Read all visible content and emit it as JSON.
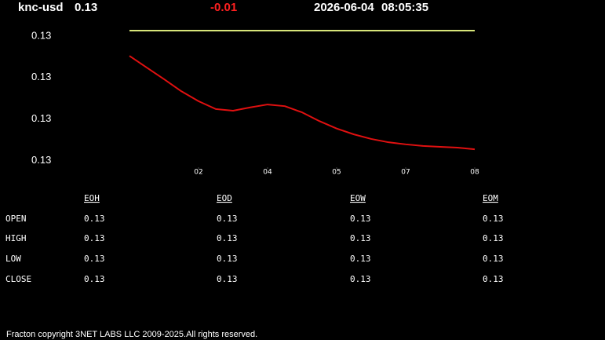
{
  "header": {
    "symbol": "knc-usd",
    "price": 0.13,
    "change": -0.01,
    "date": "2026-06-04",
    "time": "08:05:35"
  },
  "chart_data": {
    "type": "line",
    "x": [
      0,
      0.25,
      0.5,
      0.75,
      1,
      1.25,
      1.5,
      1.75,
      2,
      2.25,
      2.5,
      2.75,
      3,
      3.25,
      3.5,
      3.75,
      4,
      4.25,
      4.5,
      4.75,
      5
    ],
    "xlim": [
      0,
      5.5
    ],
    "xticks": [
      {
        "value": 1,
        "label": "02"
      },
      {
        "value": 2,
        "label": "04"
      },
      {
        "value": 3,
        "label": "05"
      },
      {
        "value": 4,
        "label": "07"
      },
      {
        "value": 5,
        "label": "08"
      }
    ],
    "ylim": [
      0.13008,
      0.13043
    ],
    "yticks": [
      {
        "value": 0.1304,
        "label": "0.13"
      },
      {
        "value": 0.1303,
        "label": "0.13"
      },
      {
        "value": 0.1302,
        "label": "0.13"
      },
      {
        "value": 0.1301,
        "label": "0.13"
      }
    ],
    "series": [
      {
        "color": "#d8e67a",
        "values": [
          0.130413,
          0.130413,
          0.130413,
          0.130413,
          0.130413,
          0.130413,
          0.130413,
          0.130413,
          0.130413,
          0.130413,
          0.130413,
          0.130413,
          0.130413,
          0.130413,
          0.130413,
          0.130413,
          0.130413,
          0.130413,
          0.130413,
          0.130413,
          0.130413
        ]
      },
      {
        "color": "#e01010",
        "values": [
          0.130352,
          0.130324,
          0.130296,
          0.130267,
          0.130243,
          0.130224,
          0.13022,
          0.130228,
          0.130235,
          0.130231,
          0.130216,
          0.130195,
          0.130177,
          0.130163,
          0.130152,
          0.130144,
          0.130139,
          0.130135,
          0.130133,
          0.130131,
          0.130127
        ]
      }
    ]
  },
  "table": {
    "columns": [
      "EOH",
      "EOD",
      "EOW",
      "EOM"
    ],
    "rows": [
      {
        "label": "OPEN",
        "values": [
          0.13,
          0.13,
          0.13,
          0.13
        ]
      },
      {
        "label": "HIGH",
        "values": [
          0.13,
          0.13,
          0.13,
          0.13
        ]
      },
      {
        "label": "LOW",
        "values": [
          0.13,
          0.13,
          0.13,
          0.13
        ]
      },
      {
        "label": "CLOSE",
        "values": [
          0.13,
          0.13,
          0.13,
          0.13
        ]
      }
    ]
  },
  "footer": "Fracton copyright 3NET LABS LLC 2009-2025.All rights reserved."
}
